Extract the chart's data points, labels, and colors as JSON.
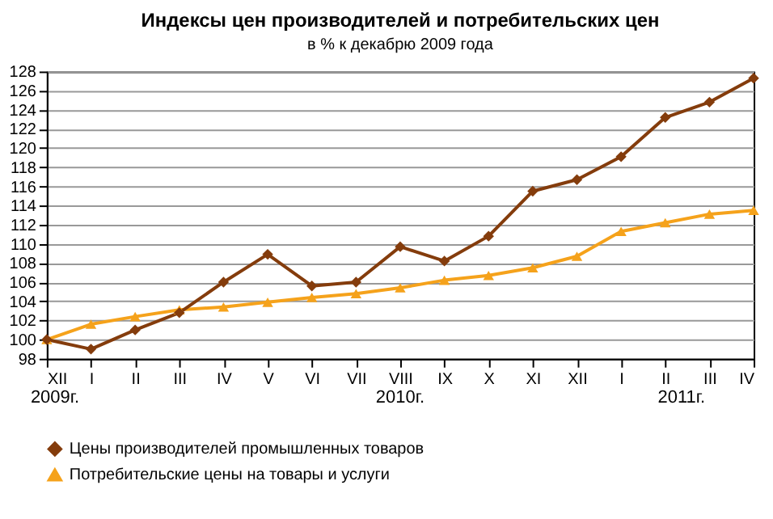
{
  "chart_data": {
    "type": "line",
    "title": "Индексы цен производителей и потребительских цен",
    "subtitle": "в  % к декабрю 2009 года",
    "categories": [
      "XII",
      "I",
      "II",
      "III",
      "IV",
      "V",
      "VI",
      "VII",
      "VIII",
      "IX",
      "X",
      "XI",
      "XII",
      "I",
      "II",
      "III",
      "IV"
    ],
    "series": [
      {
        "name": "Цены производителей промышленных товаров",
        "color": "#843c0c",
        "marker": "diamond",
        "values": [
          100,
          99,
          101,
          102.8,
          106,
          108.9,
          105.6,
          106,
          109.7,
          108.2,
          110.8,
          115.5,
          116.7,
          119.1,
          123.2,
          124.8,
          127.3
        ]
      },
      {
        "name": "Потребительские цены на товары и услуги",
        "color": "#f5a21b",
        "marker": "triangle",
        "values": [
          100,
          101.6,
          102.4,
          103.1,
          103.4,
          103.9,
          104.4,
          104.8,
          105.4,
          106.2,
          106.7,
          107.5,
          108.7,
          111.3,
          112.2,
          113.1,
          113.5
        ]
      }
    ],
    "ylim": [
      98,
      128
    ],
    "yticks": [
      98,
      100,
      102,
      104,
      106,
      108,
      110,
      112,
      114,
      116,
      118,
      120,
      122,
      124,
      126,
      128
    ],
    "grid": "y",
    "legend": "bottom",
    "line_style": "solid",
    "annotations": [
      "2009г.",
      "2010г.",
      "2011г."
    ]
  }
}
